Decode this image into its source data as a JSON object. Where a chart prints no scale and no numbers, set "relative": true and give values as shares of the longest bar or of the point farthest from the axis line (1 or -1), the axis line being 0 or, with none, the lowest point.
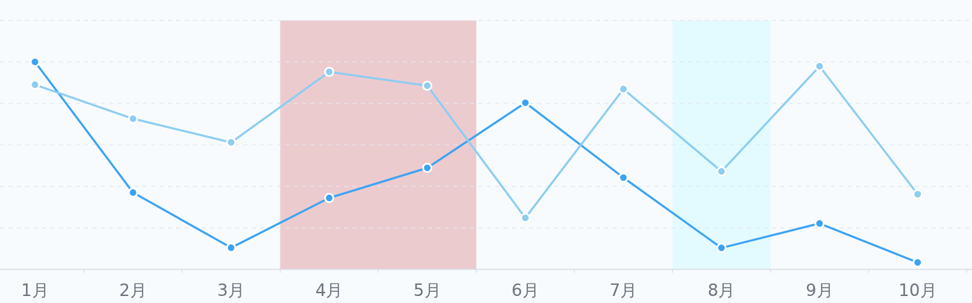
{
  "chart_data": {
    "type": "line",
    "relative": true,
    "grid": "y",
    "marker": "circle",
    "line_style": "solid",
    "categories": [
      "1月",
      "2月",
      "3月",
      "4月",
      "5月",
      "6月",
      "7月",
      "8月",
      "9月",
      "10月"
    ],
    "series": [
      {
        "color": "#3ca3f2",
        "values": [
          1.0,
          0.37,
          0.104,
          0.344,
          0.489,
          0.803,
          0.442,
          0.103,
          0.221,
          0.033
        ]
      },
      {
        "color": "#8ecdf1",
        "values": [
          0.89,
          0.726,
          0.612,
          0.952,
          0.885,
          0.248,
          0.869,
          0.472,
          0.979,
          0.362
        ]
      }
    ],
    "bands": [
      {
        "axis": "x",
        "from": "4月",
        "to": "5月",
        "color": "#eccbcf"
      },
      {
        "axis": "x",
        "from": "8月",
        "to": "8月",
        "color": "#e3fbfe"
      }
    ]
  }
}
